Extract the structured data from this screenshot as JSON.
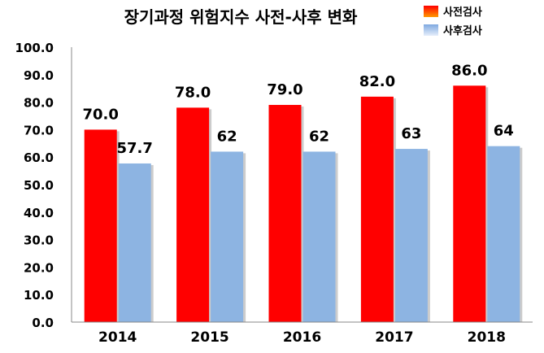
{
  "chart_data": {
    "type": "bar",
    "title": "장기과정 위험지수 사전-사후 변화",
    "categories": [
      "2014",
      "2015",
      "2016",
      "2017",
      "2018"
    ],
    "series": [
      {
        "name": "사전검사",
        "values": [
          70.0,
          78.0,
          79.0,
          82.0,
          86.0
        ],
        "labels": [
          "70.0",
          "78.0",
          "79.0",
          "82.0",
          "86.0"
        ],
        "color": "#ff0000"
      },
      {
        "name": "사후검사",
        "values": [
          57.7,
          62,
          62,
          63,
          64
        ],
        "labels": [
          "57.7",
          "62",
          "62",
          "63",
          "64"
        ],
        "color": "#8db4e2"
      }
    ],
    "ylim": [
      0,
      100
    ],
    "yticks": [
      "0.0",
      "10.0",
      "20.0",
      "30.0",
      "40.0",
      "50.0",
      "60.0",
      "70.0",
      "80.0",
      "90.0",
      "100.0"
    ],
    "xlabel": "",
    "ylabel": "",
    "grid": false,
    "legend_position": "top-right"
  }
}
